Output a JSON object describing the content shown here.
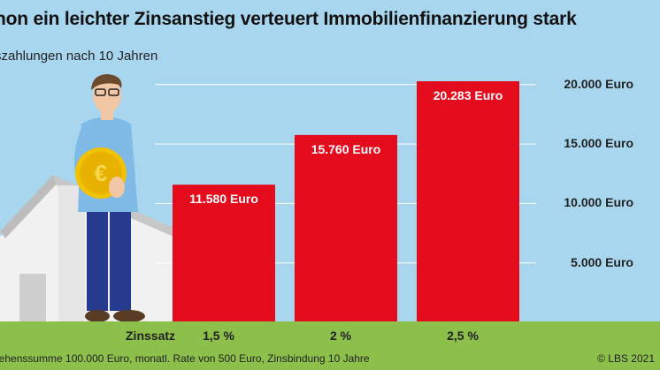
{
  "header": {
    "title": "hon ein leichter Zinsanstieg verteuert Immobilienfinanzierung stark",
    "subtitle": "szahlungen nach 10 Jahren"
  },
  "footer": {
    "note": "lehenssumme 100.000 Euro, monatl. Rate von 500 Euro, Zinsbindung 10 Jahre",
    "source": "© LBS 2021"
  },
  "colors": {
    "background": "#a8d6ee",
    "bar": "#e30b1c",
    "ground": "#8cc04b"
  },
  "chart_data": {
    "type": "bar",
    "title": "hon ein leichter Zinsanstieg verteuert Immobilienfinanzierung stark",
    "subtitle": "szahlungen nach 10 Jahren",
    "xlabel": "Zinssatz",
    "ylabel": "",
    "categories": [
      "1,5 %",
      "2 %",
      "2,5 %"
    ],
    "values": [
      11580,
      15760,
      20283
    ],
    "data_labels": [
      "11.580 Euro",
      "15.760 Euro",
      "20.283 Euro"
    ],
    "ylim": [
      0,
      20283
    ],
    "yticks": [
      5000,
      10000,
      15000,
      20000
    ],
    "ytick_labels": [
      "5.000 Euro",
      "10.000 Euro",
      "15.000 Euro",
      "20.000 Euro"
    ],
    "grid": true,
    "axis_position": "right"
  }
}
